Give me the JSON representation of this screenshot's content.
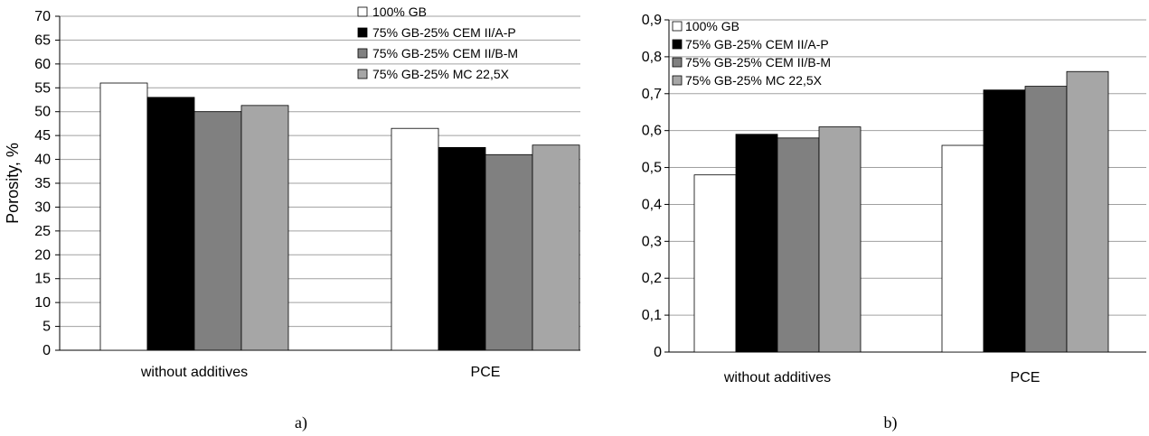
{
  "chart_data": [
    {
      "type": "bar",
      "panel_label": "a)",
      "ylabel": "Porosity, %",
      "ylim": [
        0,
        70
      ],
      "ytick_step": 5,
      "y_decimal_comma": false,
      "grid": true,
      "legend_position": "top-right",
      "categories": [
        "without additives",
        "PCE"
      ],
      "series": [
        {
          "name": "100% GB",
          "values": [
            56,
            46.5
          ]
        },
        {
          "name": "75% GB-25% CEM II/A-P",
          "values": [
            53,
            42.5
          ]
        },
        {
          "name": "75% GB-25% CEM II/B-M",
          "values": [
            50,
            41
          ]
        },
        {
          "name": "75% GB-25% MC 22,5X",
          "values": [
            51.3,
            43
          ]
        }
      ]
    },
    {
      "type": "bar",
      "panel_label": "b)",
      "ylabel": "",
      "ylim": [
        0,
        0.9
      ],
      "ytick_step": 0.1,
      "y_decimal_comma": true,
      "grid": true,
      "legend_position": "top-left",
      "categories": [
        "without additives",
        "PCE"
      ],
      "series": [
        {
          "name": "100% GB",
          "values": [
            0.48,
            0.56
          ]
        },
        {
          "name": "75% GB-25% CEM II/A-P",
          "values": [
            0.59,
            0.71
          ]
        },
        {
          "name": "75% GB-25% CEM II/B-M",
          "values": [
            0.58,
            0.72
          ]
        },
        {
          "name": "75% GB-25% MC 22,5X",
          "values": [
            0.61,
            0.76
          ]
        }
      ]
    }
  ],
  "colors": {
    "series": [
      "#ffffff",
      "#000000",
      "#808080",
      "#a6a6a6"
    ],
    "bar_stroke": "#000000",
    "grid": "#a0a0a0",
    "axis": "#000000"
  }
}
